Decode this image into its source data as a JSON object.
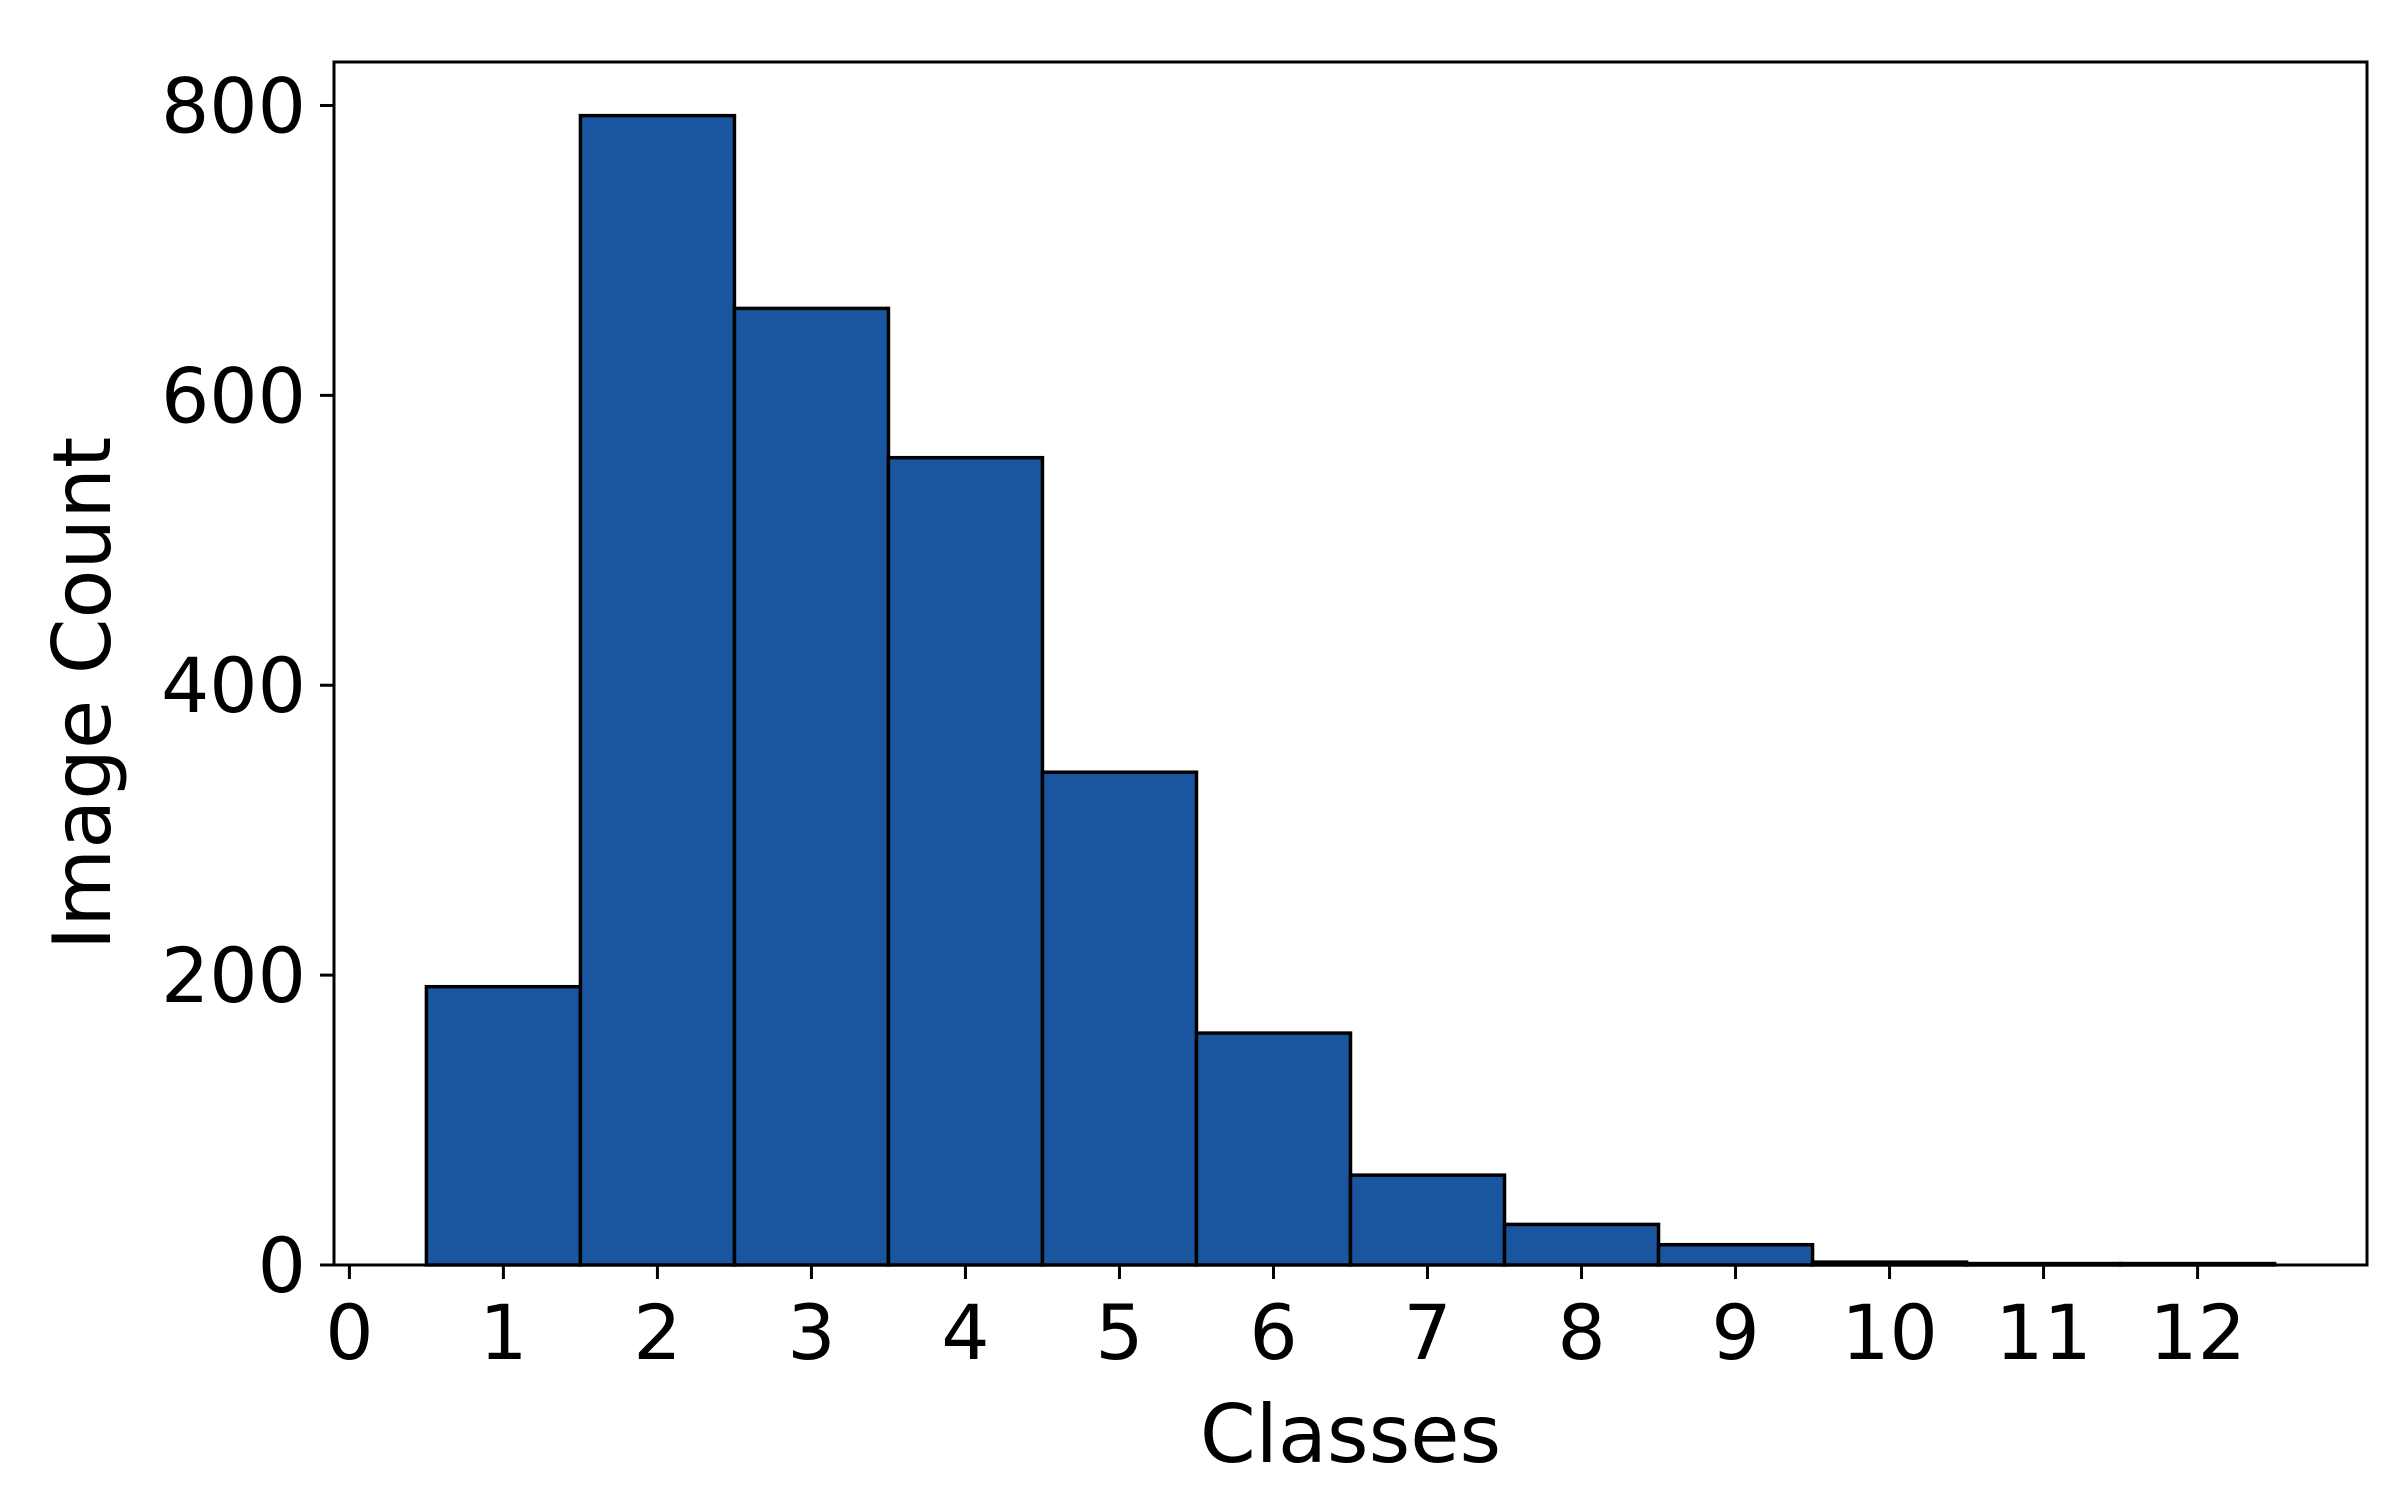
{
  "chart_data": {
    "type": "bar",
    "title": "",
    "xlabel": "Classes",
    "ylabel": "Image Count",
    "categories": [
      1,
      2,
      3,
      4,
      5,
      6,
      7,
      8,
      9,
      10,
      11,
      12
    ],
    "values": [
      192,
      793,
      660,
      557,
      340,
      160,
      62,
      28,
      14,
      2,
      1,
      1
    ],
    "xlim": [
      -0.1,
      13.1
    ],
    "ylim": [
      0,
      830
    ],
    "xticks": [
      "0",
      "1",
      "2",
      "3",
      "4",
      "5",
      "6",
      "7",
      "8",
      "9",
      "10",
      "11",
      "12"
    ],
    "yticks": [
      "0",
      "200",
      "400",
      "600",
      "800"
    ],
    "bar_color": "#1a56a0",
    "edge_color": "#000000",
    "grid": false,
    "legend": "none"
  }
}
